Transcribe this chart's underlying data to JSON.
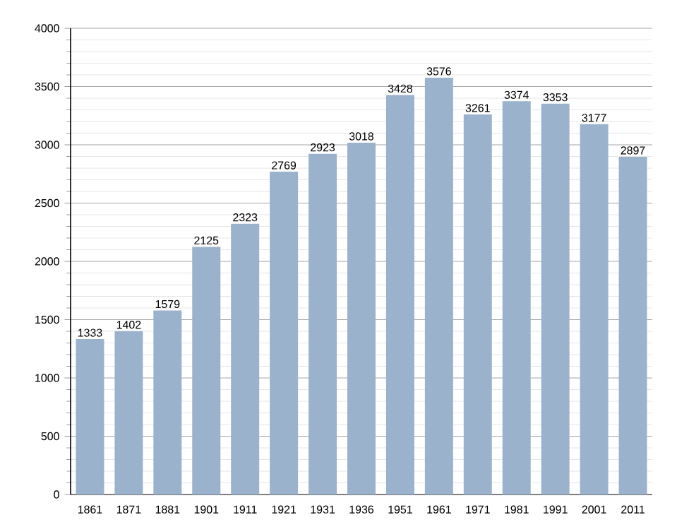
{
  "chart_data": {
    "type": "bar",
    "categories": [
      "1861",
      "1871",
      "1881",
      "1901",
      "1911",
      "1921",
      "1931",
      "1936",
      "1951",
      "1961",
      "1971",
      "1981",
      "1991",
      "2001",
      "2011"
    ],
    "values": [
      1333,
      1402,
      1579,
      2125,
      2323,
      2769,
      2923,
      3018,
      3428,
      3576,
      3261,
      3374,
      3353,
      3177,
      2897
    ],
    "color": "#9bb2cd",
    "ylim": [
      0,
      4000
    ],
    "yticks": [
      0,
      500,
      1000,
      1500,
      2000,
      2500,
      3000,
      3500,
      4000
    ],
    "grid": "y",
    "data_labels": true
  }
}
